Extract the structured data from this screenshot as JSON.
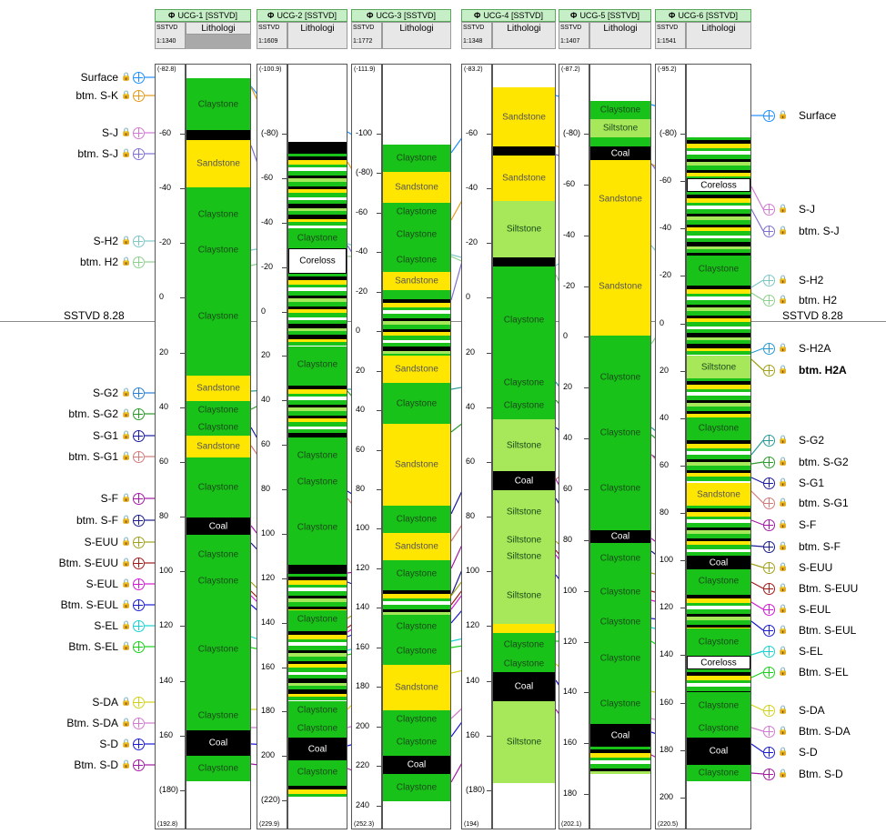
{
  "header_line_depth": "SSTVD 8.28",
  "wells": [
    {
      "name": "UCG-1 [SSTVD]",
      "scale": "1:1340",
      "unit": "SSTVD",
      "col": "Lithologi",
      "top_depth": "(-82.8)",
      "bottom_depth": "(192.8)"
    },
    {
      "name": "UCG-2 [SSTVD]",
      "scale": "1:1609",
      "unit": "SSTVD",
      "col": "Lithologi",
      "top_depth": "(-100.9)",
      "bottom_depth": "(229.9)"
    },
    {
      "name": "UCG-3 [SSTVD]",
      "scale": "1:1772",
      "unit": "SSTVD",
      "col": "Lithologi",
      "top_depth": "(-111.9)",
      "bottom_depth": "(252.3)"
    },
    {
      "name": "UCG-4 [SSTVD]",
      "scale": "1:1348",
      "unit": "SSTVD",
      "col": "Lithologi",
      "top_depth": "(-83.2)",
      "bottom_depth": "(194)"
    },
    {
      "name": "UCG-5 [SSTVD]",
      "scale": "1:1407",
      "unit": "SSTVD",
      "col": "Lithologi",
      "top_depth": "(-87.2)",
      "bottom_depth": "(202.1)"
    },
    {
      "name": "UCG-6 [SSTVD]",
      "scale": "1:1541",
      "unit": "SSTVD",
      "col": "Lithologi",
      "top_depth": "(-95.2)",
      "bottom_depth": "(220.5)"
    }
  ],
  "left_markers": [
    {
      "label": "Surface",
      "color": "#1e90ff"
    },
    {
      "label": "btm. S-K",
      "color": "#e39a1a"
    },
    {
      "label": "S-J",
      "color": "#d17ad1"
    },
    {
      "label": "btm. S-J",
      "color": "#7f6fd1"
    },
    {
      "label": "S-H2",
      "color": "#7fc7c7"
    },
    {
      "label": "btm. H2",
      "color": "#8fd08f"
    },
    {
      "label": "S-G2",
      "color": "#2a7fd1"
    },
    {
      "label": "btm. S-G2",
      "color": "#2a9a2a"
    },
    {
      "label": "S-G1",
      "color": "#1a1aa1"
    },
    {
      "label": "btm. S-G1",
      "color": "#d17a7a"
    },
    {
      "label": "S-F",
      "color": "#a11aa1"
    },
    {
      "label": "btm. S-F",
      "color": "#1a1a8a"
    },
    {
      "label": "S-EUU",
      "color": "#a1a11a"
    },
    {
      "label": "Btm. S-EUU",
      "color": "#a11a1a"
    },
    {
      "label": "S-EUL",
      "color": "#d11ad1"
    },
    {
      "label": "Btm. S-EUL",
      "color": "#1a1ad1"
    },
    {
      "label": "S-EL",
      "color": "#1ad1d1"
    },
    {
      "label": "Btm. S-EL",
      "color": "#1ad11a"
    },
    {
      "label": "S-DA",
      "color": "#d1d11a"
    },
    {
      "label": "Btm. S-DA",
      "color": "#d17ad1"
    },
    {
      "label": "S-D",
      "color": "#1a1ad1"
    },
    {
      "label": "Btm. S-D",
      "color": "#a11aa1"
    }
  ],
  "right_markers": [
    {
      "label": "Surface",
      "color": "#1e90ff"
    },
    {
      "label": "S-J",
      "color": "#d17ad1"
    },
    {
      "label": "btm. S-J",
      "color": "#7f6fd1"
    },
    {
      "label": "S-H2",
      "color": "#7fc7c7"
    },
    {
      "label": "btm. H2",
      "color": "#8fd08f"
    },
    {
      "label": "S-H2A",
      "color": "#2a9ad1"
    },
    {
      "label": "btm. H2A",
      "color": "#a1a11a"
    },
    {
      "label": "S-G2",
      "color": "#2a9a9a"
    },
    {
      "label": "btm. S-G2",
      "color": "#2a9a2a"
    },
    {
      "label": "S-G1",
      "color": "#1a1aa1"
    },
    {
      "label": "btm. S-G1",
      "color": "#d17a7a"
    },
    {
      "label": "S-F",
      "color": "#a11aa1"
    },
    {
      "label": "btm. S-F",
      "color": "#1a1a8a"
    },
    {
      "label": "S-EUU",
      "color": "#a1a11a"
    },
    {
      "label": "Btm. S-EUU",
      "color": "#a11a1a"
    },
    {
      "label": "S-EUL",
      "color": "#d11ad1"
    },
    {
      "label": "Btm. S-EUL",
      "color": "#1a1ad1"
    },
    {
      "label": "S-EL",
      "color": "#1ad1d1"
    },
    {
      "label": "Btm. S-EL",
      "color": "#1ad11a"
    },
    {
      "label": "S-DA",
      "color": "#d1d11a"
    },
    {
      "label": "Btm. S-DA",
      "color": "#d17ad1"
    },
    {
      "label": "S-D",
      "color": "#1a1ad1"
    },
    {
      "label": "Btm. S-D",
      "color": "#a11aa1"
    }
  ],
  "colors": {
    "claystone": "#19c219",
    "sandstone": "#ffe600",
    "siltstone": "#a6e85a",
    "coal": "#000000",
    "coreloss": "#ffffff"
  },
  "lith_labels": {
    "claystone": "Claystone",
    "sandstone": "Sandstone",
    "siltstone": "Siltstone",
    "coal": "Coal",
    "coreloss": "Coreloss"
  },
  "depth_ticks": {
    "w1": [
      "-60",
      "-40",
      "-20",
      "0",
      "20",
      "40",
      "60",
      "80",
      "100",
      "120",
      "140",
      "160",
      "(180)"
    ],
    "w2": [
      "(-80)",
      "-60",
      "-40",
      "-20",
      "0",
      "20",
      "40",
      "60",
      "80",
      "100",
      "120",
      "140",
      "160",
      "180",
      "200",
      "(220)"
    ],
    "w3": [
      "-100",
      "(-80)",
      "-60",
      "-40",
      "-20",
      "0",
      "20",
      "40",
      "60",
      "80",
      "100",
      "120",
      "140",
      "160",
      "180",
      "200",
      "220",
      "240"
    ],
    "w4": [
      "-60",
      "-40",
      "-20",
      "0",
      "20",
      "40",
      "60",
      "80",
      "100",
      "120",
      "140",
      "160",
      "(180)"
    ],
    "w5": [
      "(-80)",
      "-60",
      "-40",
      "-20",
      "0",
      "20",
      "40",
      "60",
      "80",
      "100",
      "120",
      "140",
      "160",
      "180"
    ],
    "w6": [
      "(-80)",
      "-60",
      "-40",
      "-20",
      "0",
      "20",
      "40",
      "60",
      "80",
      "100",
      "120",
      "140",
      "160",
      "180",
      "200"
    ]
  }
}
